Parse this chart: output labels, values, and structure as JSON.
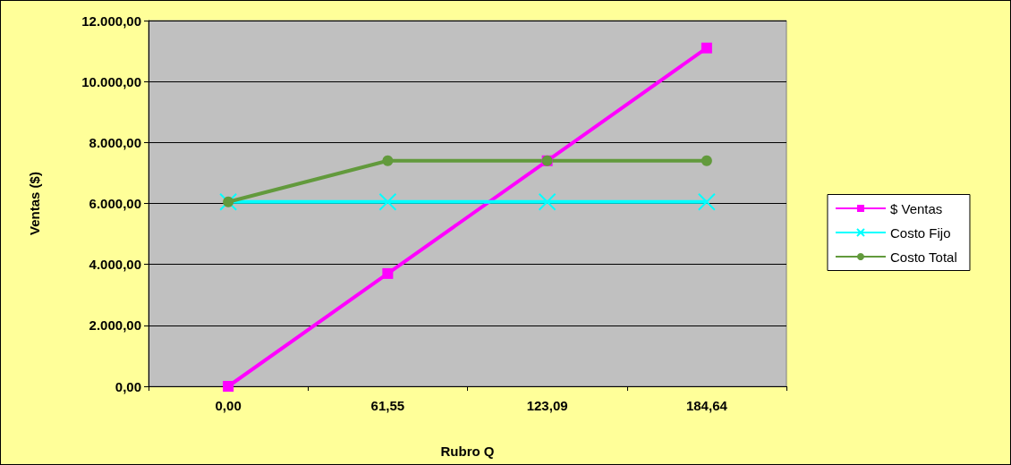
{
  "chart_data": {
    "type": "line",
    "xlabel": "Rubro Q",
    "ylabel": "Ventas ($)",
    "categories": [
      "0,00",
      "61,55",
      "123,09",
      "184,64"
    ],
    "series": [
      {
        "name": "$ Ventas",
        "color": "#ff00ff",
        "marker": "square",
        "values": [
          0,
          3700,
          7400,
          11100
        ]
      },
      {
        "name": "Costo Fijo",
        "color": "#00ffff",
        "marker": "cross",
        "values": [
          6050,
          6050,
          6050,
          6050
        ]
      },
      {
        "name": "Costo Total",
        "color": "#629a3c",
        "marker": "circle",
        "values": [
          6050,
          7400,
          7400,
          7400
        ]
      }
    ],
    "ylim": [
      0,
      12000
    ],
    "yticks": [
      {
        "value": 0,
        "label": "0,00"
      },
      {
        "value": 2000,
        "label": "2.000,00"
      },
      {
        "value": 4000,
        "label": "4.000,00"
      },
      {
        "value": 6000,
        "label": "6.000,00"
      },
      {
        "value": 8000,
        "label": "8.000,00"
      },
      {
        "value": 10000,
        "label": "10.000,00"
      },
      {
        "value": 12000,
        "label": "12.000,00"
      }
    ],
    "grid": "y",
    "legend": "right"
  }
}
